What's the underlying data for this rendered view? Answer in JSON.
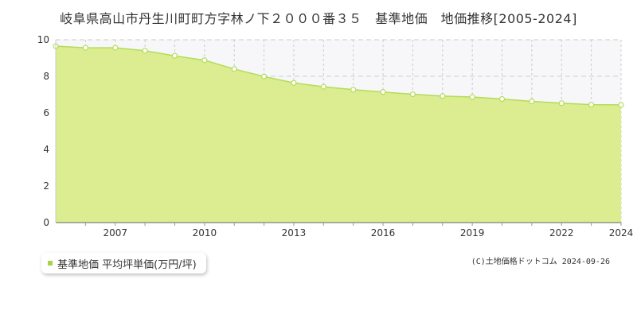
{
  "title": "岐阜県高山市丹生川町町方字林ノ下２０００番３５　基準地価　地価推移[2005-2024]",
  "legend": {
    "label": "基準地価 平均坪単価(万円/坪)"
  },
  "credit": {
    "text": "(C)土地価格ドットコム 2024-09-26"
  },
  "colors": {
    "fill": "#dcec90",
    "line": "#b4dc5a",
    "marker_stroke": "#b4dc5a",
    "swatch": "#a5d44a"
  },
  "chart_data": {
    "type": "area",
    "title": "岐阜県高山市丹生川町町方字林ノ下２０００番３５　基準地価　地価推移[2005-2024]",
    "xlabel": "",
    "ylabel": "",
    "x": [
      2005,
      2006,
      2007,
      2008,
      2009,
      2010,
      2011,
      2012,
      2013,
      2014,
      2015,
      2016,
      2017,
      2018,
      2019,
      2020,
      2021,
      2022,
      2023,
      2024
    ],
    "series": [
      {
        "name": "基準地価 平均坪単価(万円/坪)",
        "values": [
          9.65,
          9.56,
          9.56,
          9.4,
          9.12,
          8.88,
          8.4,
          7.99,
          7.64,
          7.43,
          7.27,
          7.14,
          7.02,
          6.92,
          6.87,
          6.76,
          6.63,
          6.53,
          6.45,
          6.44
        ]
      }
    ],
    "xlim": [
      2005,
      2024
    ],
    "ylim": [
      0,
      10
    ],
    "y_ticks": [
      "0",
      "2",
      "4",
      "6",
      "8",
      "10"
    ],
    "x_ticks": [
      "2007",
      "2010",
      "2013",
      "2016",
      "2019",
      "2022",
      "2024"
    ],
    "grid": true,
    "legend_position": "bottom-left"
  }
}
